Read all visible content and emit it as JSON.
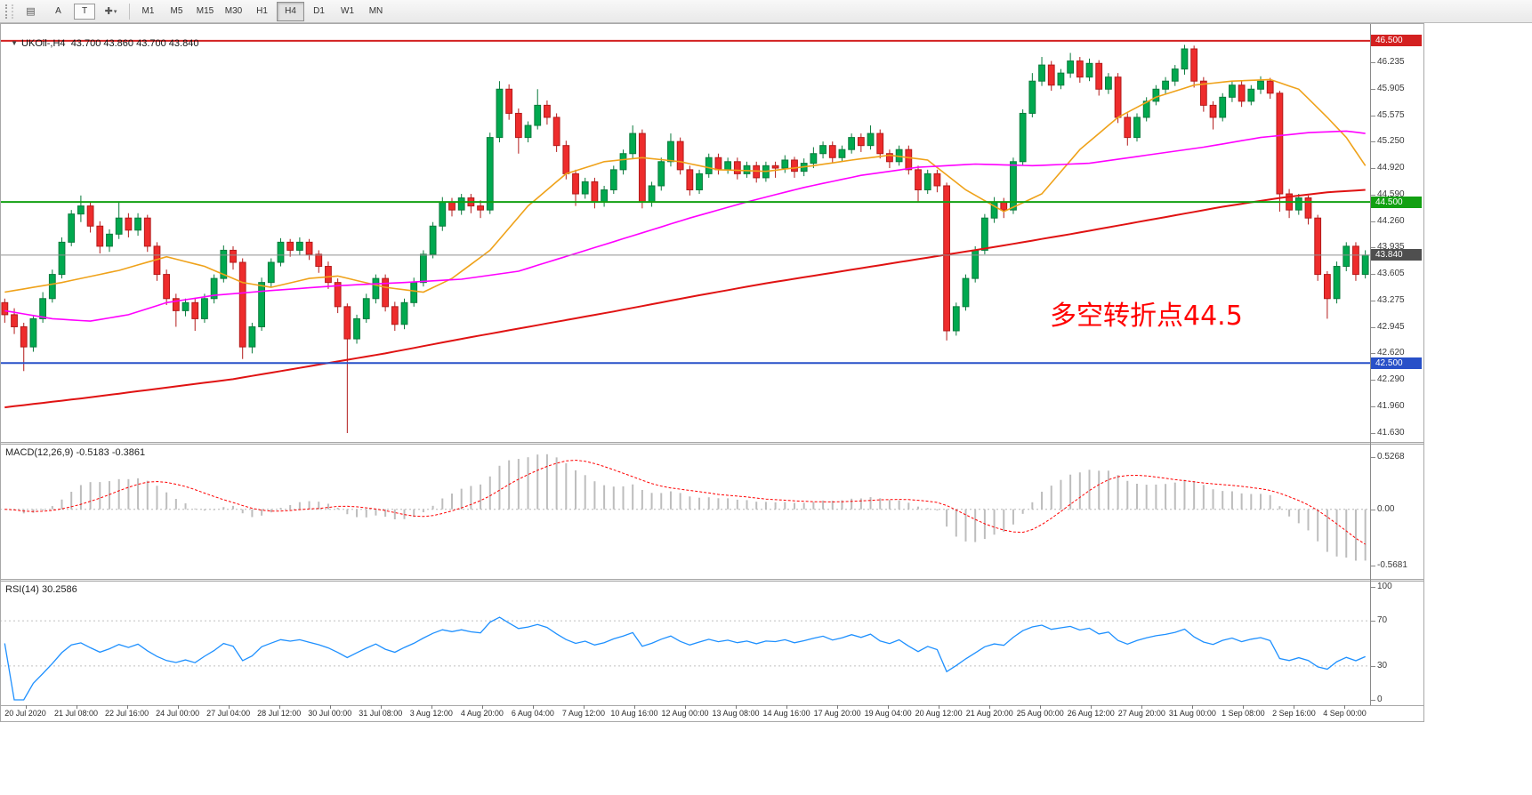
{
  "toolbar": {
    "tools": [
      {
        "name": "chart-grid",
        "glyph": "▤"
      },
      {
        "name": "text-a",
        "label": "A"
      },
      {
        "name": "text-t",
        "label": "T"
      },
      {
        "name": "crosshair",
        "glyph": "✚",
        "caret": "▾"
      }
    ],
    "timeframes": [
      "M1",
      "M5",
      "M15",
      "M30",
      "H1",
      "H4",
      "D1",
      "W1",
      "MN"
    ],
    "active_timeframe": "H4"
  },
  "header": {
    "collapse_glyph": "▼",
    "symbol": "UKOil-,H4",
    "ohlc": "43.700 43.860 43.700 43.840"
  },
  "annotation": {
    "text": "多空转折点44.5",
    "color": "#ff0000"
  },
  "chart_data": {
    "type": "candlestick",
    "symbol": "UKOil-",
    "timeframe": "H4",
    "title": "UKOil-,H4",
    "ylim": [
      41.52,
      46.72
    ],
    "bull_color": "#00a94f",
    "bull_border": "#0a7a3c",
    "bear_color": "#ee2c2c",
    "bear_border": "#b31a1a",
    "candles": [
      [
        43.25,
        43.3,
        43.0,
        43.1
      ],
      [
        43.1,
        43.18,
        42.86,
        42.95
      ],
      [
        42.95,
        43.0,
        42.4,
        42.7
      ],
      [
        42.7,
        43.08,
        42.64,
        43.05
      ],
      [
        43.05,
        43.38,
        43.0,
        43.3
      ],
      [
        43.3,
        43.66,
        43.25,
        43.6
      ],
      [
        43.6,
        44.06,
        43.55,
        44.0
      ],
      [
        44.0,
        44.4,
        43.95,
        44.35
      ],
      [
        44.35,
        44.58,
        44.25,
        44.45
      ],
      [
        44.45,
        44.5,
        44.12,
        44.2
      ],
      [
        44.2,
        44.26,
        43.86,
        43.95
      ],
      [
        43.95,
        44.16,
        43.88,
        44.1
      ],
      [
        44.1,
        44.5,
        44.04,
        44.3
      ],
      [
        44.3,
        44.36,
        44.06,
        44.15
      ],
      [
        44.15,
        44.36,
        44.08,
        44.3
      ],
      [
        44.3,
        44.34,
        43.88,
        43.95
      ],
      [
        43.95,
        44.0,
        43.52,
        43.6
      ],
      [
        43.6,
        43.66,
        43.22,
        43.3
      ],
      [
        43.3,
        43.36,
        42.95,
        43.15
      ],
      [
        43.15,
        43.3,
        43.08,
        43.25
      ],
      [
        43.25,
        43.3,
        42.9,
        43.05
      ],
      [
        43.05,
        43.36,
        43.0,
        43.3
      ],
      [
        43.3,
        43.6,
        43.24,
        43.55
      ],
      [
        43.55,
        43.96,
        43.5,
        43.9
      ],
      [
        43.9,
        43.95,
        43.66,
        43.75
      ],
      [
        43.75,
        43.8,
        42.55,
        42.7
      ],
      [
        42.7,
        43.0,
        42.62,
        42.95
      ],
      [
        42.95,
        43.56,
        42.9,
        43.5
      ],
      [
        43.5,
        43.8,
        43.44,
        43.75
      ],
      [
        43.75,
        44.05,
        43.7,
        44.0
      ],
      [
        44.0,
        44.04,
        43.82,
        43.9
      ],
      [
        43.9,
        44.06,
        43.84,
        44.0
      ],
      [
        44.0,
        44.04,
        43.78,
        43.85
      ],
      [
        43.85,
        43.9,
        43.62,
        43.7
      ],
      [
        43.7,
        43.76,
        43.42,
        43.5
      ],
      [
        43.5,
        43.55,
        43.12,
        43.2
      ],
      [
        43.2,
        43.24,
        41.63,
        42.8
      ],
      [
        42.8,
        43.1,
        42.74,
        43.05
      ],
      [
        43.05,
        43.36,
        43.0,
        43.3
      ],
      [
        43.3,
        43.6,
        43.24,
        43.55
      ],
      [
        43.55,
        43.6,
        43.14,
        43.2
      ],
      [
        43.2,
        43.26,
        42.9,
        42.98
      ],
      [
        42.98,
        43.3,
        42.92,
        43.25
      ],
      [
        43.25,
        43.56,
        43.2,
        43.5
      ],
      [
        43.5,
        43.9,
        43.45,
        43.85
      ],
      [
        43.85,
        44.25,
        43.8,
        44.2
      ],
      [
        44.2,
        44.56,
        44.14,
        44.5
      ],
      [
        44.5,
        44.55,
        44.32,
        44.4
      ],
      [
        44.4,
        44.6,
        44.34,
        44.55
      ],
      [
        44.55,
        44.6,
        44.36,
        44.45
      ],
      [
        44.45,
        44.52,
        44.3,
        44.4
      ],
      [
        44.4,
        45.36,
        44.35,
        45.3
      ],
      [
        45.3,
        46.0,
        45.24,
        45.9
      ],
      [
        45.9,
        45.96,
        45.52,
        45.6
      ],
      [
        45.6,
        45.66,
        45.1,
        45.3
      ],
      [
        45.3,
        45.5,
        45.24,
        45.45
      ],
      [
        45.45,
        45.9,
        45.4,
        45.7
      ],
      [
        45.7,
        45.76,
        45.46,
        45.55
      ],
      [
        45.55,
        45.6,
        45.12,
        45.2
      ],
      [
        45.2,
        45.26,
        44.78,
        44.85
      ],
      [
        44.85,
        44.9,
        44.45,
        44.6
      ],
      [
        44.6,
        44.8,
        44.54,
        44.75
      ],
      [
        44.75,
        44.8,
        44.42,
        44.5
      ],
      [
        44.5,
        44.7,
        44.44,
        44.65
      ],
      [
        44.65,
        44.95,
        44.6,
        44.9
      ],
      [
        44.9,
        45.15,
        44.84,
        45.1
      ],
      [
        45.1,
        45.45,
        45.04,
        45.35
      ],
      [
        45.35,
        45.4,
        44.42,
        44.5
      ],
      [
        44.5,
        44.75,
        44.44,
        44.7
      ],
      [
        44.7,
        45.05,
        44.64,
        45.0
      ],
      [
        45.0,
        45.35,
        44.94,
        45.25
      ],
      [
        45.25,
        45.3,
        44.84,
        44.9
      ],
      [
        44.9,
        44.95,
        44.58,
        44.65
      ],
      [
        44.65,
        44.9,
        44.6,
        44.85
      ],
      [
        44.85,
        45.1,
        44.8,
        45.05
      ],
      [
        45.05,
        45.1,
        44.84,
        44.9
      ],
      [
        44.9,
        45.05,
        44.85,
        45.0
      ],
      [
        45.0,
        45.05,
        44.78,
        44.85
      ],
      [
        44.85,
        45.0,
        44.8,
        44.95
      ],
      [
        44.95,
        45.0,
        44.74,
        44.8
      ],
      [
        44.8,
        45.0,
        44.75,
        44.95
      ],
      [
        44.95,
        45.0,
        44.8,
        44.92
      ],
      [
        44.92,
        45.08,
        44.86,
        45.02
      ],
      [
        45.02,
        45.06,
        44.8,
        44.88
      ],
      [
        44.88,
        45.04,
        44.82,
        44.98
      ],
      [
        44.98,
        45.18,
        44.92,
        45.1
      ],
      [
        45.1,
        45.25,
        45.04,
        45.2
      ],
      [
        45.2,
        45.25,
        44.98,
        45.05
      ],
      [
        45.05,
        45.2,
        45.0,
        45.15
      ],
      [
        45.15,
        45.35,
        45.1,
        45.3
      ],
      [
        45.3,
        45.35,
        45.12,
        45.2
      ],
      [
        45.2,
        45.45,
        45.15,
        45.35
      ],
      [
        45.35,
        45.4,
        45.04,
        45.1
      ],
      [
        45.1,
        45.15,
        44.92,
        45.0
      ],
      [
        45.0,
        45.2,
        44.95,
        45.15
      ],
      [
        45.15,
        45.2,
        44.84,
        44.9
      ],
      [
        44.9,
        44.95,
        44.5,
        44.65
      ],
      [
        44.65,
        44.9,
        44.6,
        44.85
      ],
      [
        44.85,
        44.9,
        44.62,
        44.7
      ],
      [
        44.7,
        44.74,
        42.78,
        42.9
      ],
      [
        42.9,
        43.25,
        42.84,
        43.2
      ],
      [
        43.2,
        43.6,
        43.15,
        43.55
      ],
      [
        43.55,
        43.95,
        43.5,
        43.9
      ],
      [
        43.9,
        44.35,
        43.85,
        44.3
      ],
      [
        44.3,
        44.56,
        44.24,
        44.5
      ],
      [
        44.5,
        44.55,
        44.3,
        44.4
      ],
      [
        44.4,
        45.05,
        44.35,
        45.0
      ],
      [
        45.0,
        45.65,
        44.95,
        45.6
      ],
      [
        45.6,
        46.1,
        45.55,
        46.0
      ],
      [
        46.0,
        46.3,
        45.94,
        46.2
      ],
      [
        46.2,
        46.25,
        45.88,
        45.95
      ],
      [
        45.95,
        46.15,
        45.9,
        46.1
      ],
      [
        46.1,
        46.35,
        46.04,
        46.25
      ],
      [
        46.25,
        46.3,
        45.98,
        46.05
      ],
      [
        46.05,
        46.28,
        46.0,
        46.22
      ],
      [
        46.22,
        46.26,
        45.82,
        45.9
      ],
      [
        45.9,
        46.1,
        45.84,
        46.05
      ],
      [
        46.05,
        46.1,
        45.48,
        45.55
      ],
      [
        45.55,
        45.6,
        45.2,
        45.3
      ],
      [
        45.3,
        45.6,
        45.25,
        45.55
      ],
      [
        45.55,
        45.8,
        45.5,
        45.75
      ],
      [
        45.75,
        45.95,
        45.7,
        45.9
      ],
      [
        45.9,
        46.05,
        45.84,
        46.0
      ],
      [
        46.0,
        46.2,
        45.94,
        46.15
      ],
      [
        46.15,
        46.45,
        46.08,
        46.4
      ],
      [
        46.4,
        46.44,
        45.92,
        46.0
      ],
      [
        46.0,
        46.05,
        45.62,
        45.7
      ],
      [
        45.7,
        45.75,
        45.4,
        45.55
      ],
      [
        45.55,
        45.85,
        45.5,
        45.8
      ],
      [
        45.8,
        46.0,
        45.74,
        45.95
      ],
      [
        45.95,
        46.0,
        45.68,
        45.75
      ],
      [
        45.75,
        45.95,
        45.7,
        45.9
      ],
      [
        45.9,
        46.06,
        45.84,
        46.0
      ],
      [
        46.0,
        46.04,
        45.78,
        45.85
      ],
      [
        45.85,
        45.88,
        44.38,
        44.6
      ],
      [
        44.6,
        44.66,
        44.3,
        44.4
      ],
      [
        44.4,
        44.6,
        44.34,
        44.55
      ],
      [
        44.55,
        44.58,
        44.22,
        44.3
      ],
      [
        44.3,
        44.34,
        43.52,
        43.6
      ],
      [
        43.6,
        43.64,
        43.05,
        43.3
      ],
      [
        43.3,
        43.76,
        43.24,
        43.7
      ],
      [
        43.7,
        44.0,
        43.64,
        43.95
      ],
      [
        43.95,
        44.0,
        43.52,
        43.6
      ],
      [
        43.6,
        43.9,
        43.55,
        43.84
      ]
    ],
    "moving_averages": [
      {
        "name": "ma-fast",
        "color": "#efa21a",
        "width": 1.6,
        "points": [
          [
            0,
            43.38
          ],
          [
            6,
            43.5
          ],
          [
            12,
            43.65
          ],
          [
            17,
            43.82
          ],
          [
            21,
            43.7
          ],
          [
            25,
            43.5
          ],
          [
            28,
            43.44
          ],
          [
            32,
            43.55
          ],
          [
            35,
            43.58
          ],
          [
            40,
            43.44
          ],
          [
            44,
            43.38
          ],
          [
            47,
            43.55
          ],
          [
            51,
            43.9
          ],
          [
            55,
            44.45
          ],
          [
            59,
            44.85
          ],
          [
            63,
            45.0
          ],
          [
            67,
            45.05
          ],
          [
            71,
            45.0
          ],
          [
            75,
            44.9
          ],
          [
            80,
            44.88
          ],
          [
            85,
            44.95
          ],
          [
            89,
            45.02
          ],
          [
            93,
            45.08
          ],
          [
            97,
            45.02
          ],
          [
            101,
            44.65
          ],
          [
            105,
            44.38
          ],
          [
            109,
            44.6
          ],
          [
            113,
            45.15
          ],
          [
            117,
            45.55
          ],
          [
            121,
            45.8
          ],
          [
            125,
            45.95
          ],
          [
            129,
            46.0
          ],
          [
            133,
            46.02
          ],
          [
            136,
            45.9
          ],
          [
            139,
            45.55
          ],
          [
            141,
            45.3
          ],
          [
            143,
            44.95
          ]
        ]
      },
      {
        "name": "ma-medium",
        "color": "#ff00ff",
        "width": 1.6,
        "points": [
          [
            0,
            43.15
          ],
          [
            5,
            43.05
          ],
          [
            9,
            43.02
          ],
          [
            13,
            43.1
          ],
          [
            17,
            43.25
          ],
          [
            22,
            43.34
          ],
          [
            28,
            43.4
          ],
          [
            35,
            43.46
          ],
          [
            42,
            43.5
          ],
          [
            48,
            43.54
          ],
          [
            54,
            43.64
          ],
          [
            60,
            43.86
          ],
          [
            66,
            44.08
          ],
          [
            72,
            44.3
          ],
          [
            78,
            44.5
          ],
          [
            84,
            44.68
          ],
          [
            90,
            44.83
          ],
          [
            96,
            44.93
          ],
          [
            102,
            44.97
          ],
          [
            108,
            44.95
          ],
          [
            114,
            44.98
          ],
          [
            120,
            45.08
          ],
          [
            126,
            45.18
          ],
          [
            132,
            45.3
          ],
          [
            137,
            45.36
          ],
          [
            141,
            45.38
          ],
          [
            143,
            45.35
          ]
        ]
      },
      {
        "name": "ma-slow",
        "color": "#e01212",
        "width": 2,
        "points": [
          [
            0,
            41.95
          ],
          [
            8,
            42.06
          ],
          [
            16,
            42.18
          ],
          [
            24,
            42.3
          ],
          [
            32,
            42.46
          ],
          [
            40,
            42.62
          ],
          [
            48,
            42.8
          ],
          [
            56,
            42.97
          ],
          [
            64,
            43.14
          ],
          [
            72,
            43.32
          ],
          [
            80,
            43.49
          ],
          [
            88,
            43.64
          ],
          [
            96,
            43.79
          ],
          [
            104,
            43.94
          ],
          [
            112,
            44.1
          ],
          [
            120,
            44.27
          ],
          [
            128,
            44.44
          ],
          [
            134,
            44.55
          ],
          [
            139,
            44.62
          ],
          [
            143,
            44.65
          ]
        ]
      }
    ],
    "hlines": [
      {
        "value": 46.5,
        "color": "#d32020",
        "label": "46.500"
      },
      {
        "value": 44.5,
        "color": "#12a012",
        "label": "44.500"
      },
      {
        "value": 42.5,
        "color": "#2850c8",
        "label": "42.500"
      }
    ],
    "current_price": {
      "value": 43.84,
      "label": "43.840",
      "color": "#4f4f4f"
    },
    "y_ticks": [
      "46.235",
      "45.905",
      "45.575",
      "45.250",
      "44.920",
      "44.590",
      "44.260",
      "43.935",
      "43.605",
      "43.275",
      "42.945",
      "42.620",
      "42.290",
      "41.960",
      "41.630"
    ],
    "x_labels": [
      "20 Jul 2020",
      "21 Jul 08:00",
      "22 Jul 16:00",
      "24 Jul 00:00",
      "27 Jul 04:00",
      "28 Jul 12:00",
      "30 Jul 00:00",
      "31 Jul 08:00",
      "3 Aug 12:00",
      "4 Aug 20:00",
      "6 Aug 04:00",
      "7 Aug 12:00",
      "10 Aug 16:00",
      "12 Aug 00:00",
      "13 Aug 08:00",
      "14 Aug 16:00",
      "17 Aug 20:00",
      "19 Aug 04:00",
      "20 Aug 12:00",
      "21 Aug 20:00",
      "25 Aug 00:00",
      "26 Aug 12:00",
      "27 Aug 20:00",
      "31 Aug 00:00",
      "1 Sep 08:00",
      "2 Sep 16:00",
      "4 Sep 00:00"
    ],
    "indicators": [
      {
        "name": "MACD",
        "label": "MACD(12,26,9) -0.5183 -0.3861",
        "scale_labels": [
          {
            "text": "0.5268",
            "value": 0.5268
          },
          {
            "text": "0.00",
            "value": 0
          },
          {
            "text": "-0.5681",
            "value": -0.5681
          }
        ],
        "range": [
          -0.7,
          0.65
        ],
        "histogram_color": "#bdbdbd",
        "signal_color": "#ff0000"
      },
      {
        "name": "RSI",
        "label": "RSI(14) 30.2586",
        "scale_labels": [
          {
            "text": "100",
            "value": 100
          },
          {
            "text": "70",
            "value": 70
          },
          {
            "text": "30",
            "value": 30
          },
          {
            "text": "0",
            "value": 0
          }
        ],
        "levels": [
          70,
          30
        ],
        "line_color": "#1e90ff"
      }
    ]
  }
}
